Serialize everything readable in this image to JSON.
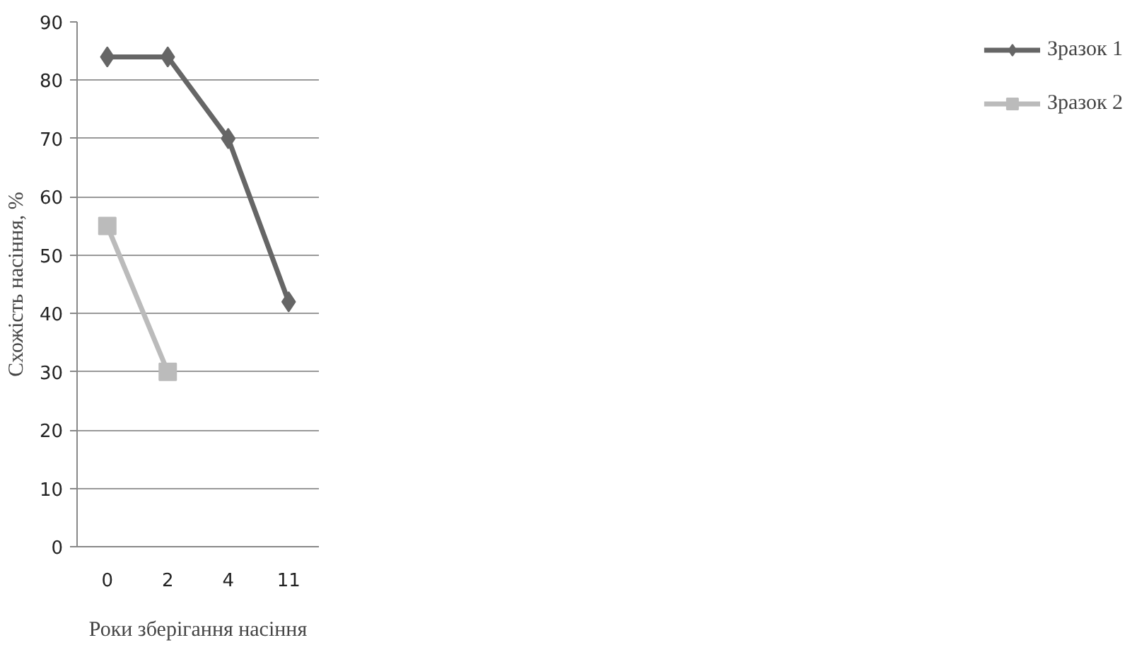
{
  "chart_data": {
    "type": "line",
    "xlabel": "Роки зберігання насіння",
    "ylabel": "Схожість насіння, %",
    "categories": [
      "0",
      "2",
      "4",
      "11"
    ],
    "series": [
      {
        "name": "Зразок 1",
        "color": "#666666",
        "marker": "diamond",
        "values": [
          84,
          84,
          70,
          42
        ]
      },
      {
        "name": "Зразок 2",
        "color": "#bbbbbb",
        "marker": "square",
        "values": [
          55,
          30,
          null,
          null
        ]
      }
    ],
    "ylim": [
      0,
      90
    ],
    "yticks": [
      0,
      10,
      20,
      30,
      40,
      50,
      60,
      70,
      80,
      90
    ],
    "grid": "y",
    "legend": "right",
    "line_style": "solid"
  }
}
